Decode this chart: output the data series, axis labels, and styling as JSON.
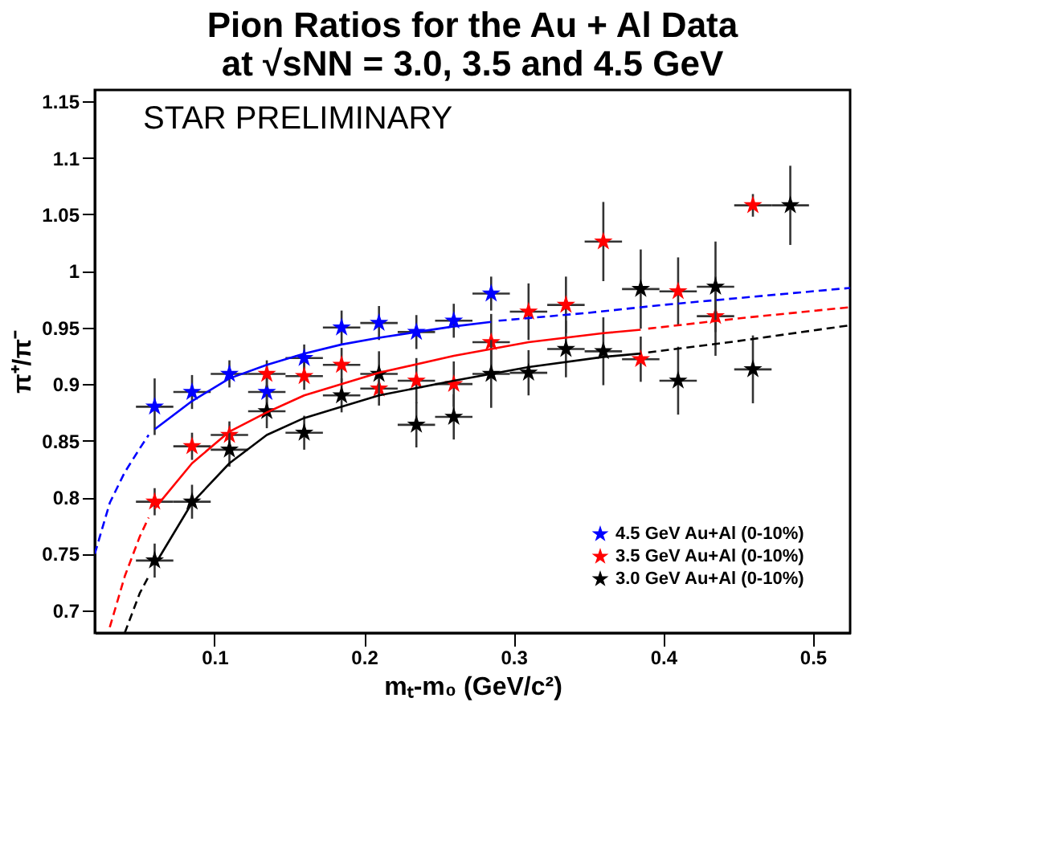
{
  "chart_data": {
    "type": "scatter",
    "title": [
      "Pion Ratios for the Au + Al Data",
      "at √sNN = 3.0, 3.5 and 4.5 GeV"
    ],
    "xlabel": "mₜ-m₀ (GeV/c²)",
    "ylabel": "π⁺/π⁻",
    "annotations": [
      "STAR PRELIMINARY"
    ],
    "xlim": [
      0.02,
      0.525
    ],
    "xticks": [
      0.1,
      0.2,
      0.3,
      0.4,
      0.5
    ],
    "ylim": [
      0.68,
      1.16
    ],
    "yticks": [
      0.7,
      0.75,
      0.8,
      0.85,
      0.9,
      0.95,
      1,
      1.05,
      1.1,
      1.15
    ],
    "grid": false,
    "legend": "bottom right",
    "series": [
      {
        "name": "4.5 GeV Au+Al (0-10%)",
        "marker": "star",
        "color": "#0000ff",
        "x": [
          0.06,
          0.085,
          0.11,
          0.135,
          0.16,
          0.185,
          0.21,
          0.235,
          0.26,
          0.285
        ],
        "values": [
          0.88,
          0.893,
          0.909,
          0.893,
          0.923,
          0.95,
          0.954,
          0.946,
          0.956,
          0.98
        ],
        "errors": [
          0.025,
          0.015,
          0.012,
          0.015,
          0.012,
          0.015,
          0.015,
          0.015,
          0.015,
          0.015
        ],
        "xerrors": [
          0.0125,
          0.0125,
          0.0125,
          0.0125,
          0.0125,
          0.0125,
          0.0125,
          0.0125,
          0.0125,
          0.0125
        ]
      },
      {
        "name": "3.5 GeV Au+Al (0-10%)",
        "marker": "star",
        "color": "#ff0000",
        "x": [
          0.06,
          0.085,
          0.11,
          0.135,
          0.16,
          0.185,
          0.21,
          0.235,
          0.26,
          0.285,
          0.31,
          0.335,
          0.36,
          0.385,
          0.41,
          0.435,
          0.46
        ],
        "values": [
          0.796,
          0.845,
          0.855,
          0.909,
          0.907,
          0.917,
          0.896,
          0.903,
          0.9,
          0.937,
          0.964,
          0.97,
          1.026,
          0.922,
          0.982,
          0.96,
          1.058
        ],
        "errors": [
          0.012,
          0.012,
          0.012,
          0.012,
          0.012,
          0.015,
          0.015,
          0.02,
          0.02,
          0.025,
          0.025,
          0.025,
          0.035,
          0.02,
          0.03,
          0.035,
          0.01
        ],
        "xerrors": [
          0.0125,
          0.0125,
          0.0125,
          0.0125,
          0.0125,
          0.0125,
          0.0125,
          0.0125,
          0.0125,
          0.0125,
          0.0125,
          0.0125,
          0.0125,
          0.0125,
          0.0125,
          0.0125,
          0.0125
        ]
      },
      {
        "name": "3.0 GeV Au+Al (0-10%)",
        "marker": "star",
        "color": "#000000",
        "x": [
          0.06,
          0.085,
          0.11,
          0.135,
          0.16,
          0.185,
          0.21,
          0.235,
          0.26,
          0.285,
          0.31,
          0.335,
          0.36,
          0.385,
          0.41,
          0.435,
          0.46,
          0.485
        ],
        "values": [
          0.744,
          0.796,
          0.842,
          0.876,
          0.857,
          0.89,
          0.909,
          0.864,
          0.871,
          0.909,
          0.91,
          0.931,
          0.929,
          0.984,
          0.903,
          0.986,
          0.913,
          1.058
        ],
        "errors": [
          0.015,
          0.015,
          0.015,
          0.015,
          0.015,
          0.015,
          0.02,
          0.02,
          0.02,
          0.03,
          0.02,
          0.025,
          0.03,
          0.035,
          0.03,
          0.04,
          0.03,
          0.035
        ],
        "xerrors": [
          0.0125,
          0.0125,
          0.0125,
          0.0125,
          0.0125,
          0.0125,
          0.0125,
          0.0125,
          0.0125,
          0.0125,
          0.0125,
          0.0125,
          0.0125,
          0.0125,
          0.0125,
          0.0125,
          0.0125,
          0.0125
        ]
      },
      {
        "type": "line",
        "marker": "none",
        "line_style": "dashed",
        "color": "#0000ff",
        "x": [
          0.02,
          0.03,
          0.04,
          0.05,
          0.056
        ],
        "values": [
          0.75,
          0.795,
          0.822,
          0.843,
          0.855
        ]
      },
      {
        "type": "line",
        "marker": "none",
        "line_style": "solid",
        "color": "#0000ff",
        "x": [
          0.06,
          0.085,
          0.11,
          0.135,
          0.16,
          0.185,
          0.21,
          0.235,
          0.26,
          0.285
        ],
        "values": [
          0.86,
          0.885,
          0.905,
          0.917,
          0.927,
          0.935,
          0.941,
          0.946,
          0.951,
          0.955
        ]
      },
      {
        "type": "line",
        "marker": "none",
        "line_style": "dashed",
        "color": "#0000ff",
        "x": [
          0.29,
          0.35,
          0.4,
          0.45,
          0.525
        ],
        "values": [
          0.956,
          0.963,
          0.97,
          0.976,
          0.985
        ]
      },
      {
        "type": "line",
        "marker": "none",
        "line_style": "dashed",
        "color": "#ff0000",
        "x": [
          0.03,
          0.04,
          0.05,
          0.056
        ],
        "values": [
          0.685,
          0.73,
          0.765,
          0.782
        ]
      },
      {
        "type": "line",
        "marker": "none",
        "line_style": "solid",
        "color": "#ff0000",
        "x": [
          0.06,
          0.085,
          0.11,
          0.135,
          0.16,
          0.21,
          0.26,
          0.31,
          0.36,
          0.385
        ],
        "values": [
          0.79,
          0.83,
          0.858,
          0.875,
          0.89,
          0.91,
          0.925,
          0.937,
          0.945,
          0.948
        ]
      },
      {
        "type": "line",
        "marker": "none",
        "line_style": "dashed",
        "color": "#ff0000",
        "x": [
          0.39,
          0.45,
          0.525
        ],
        "values": [
          0.949,
          0.958,
          0.968
        ]
      },
      {
        "type": "line",
        "marker": "none",
        "line_style": "dashed",
        "color": "#000000",
        "x": [
          0.04,
          0.05,
          0.056
        ],
        "values": [
          0.68,
          0.715,
          0.73
        ]
      },
      {
        "type": "line",
        "marker": "none",
        "line_style": "solid",
        "color": "#000000",
        "x": [
          0.06,
          0.085,
          0.11,
          0.135,
          0.16,
          0.21,
          0.26,
          0.31,
          0.36,
          0.385
        ],
        "values": [
          0.74,
          0.795,
          0.83,
          0.855,
          0.87,
          0.89,
          0.903,
          0.915,
          0.924,
          0.927
        ]
      },
      {
        "type": "line",
        "marker": "none",
        "line_style": "dashed",
        "color": "#000000",
        "x": [
          0.39,
          0.45,
          0.525
        ],
        "values": [
          0.928,
          0.938,
          0.952
        ]
      }
    ]
  }
}
